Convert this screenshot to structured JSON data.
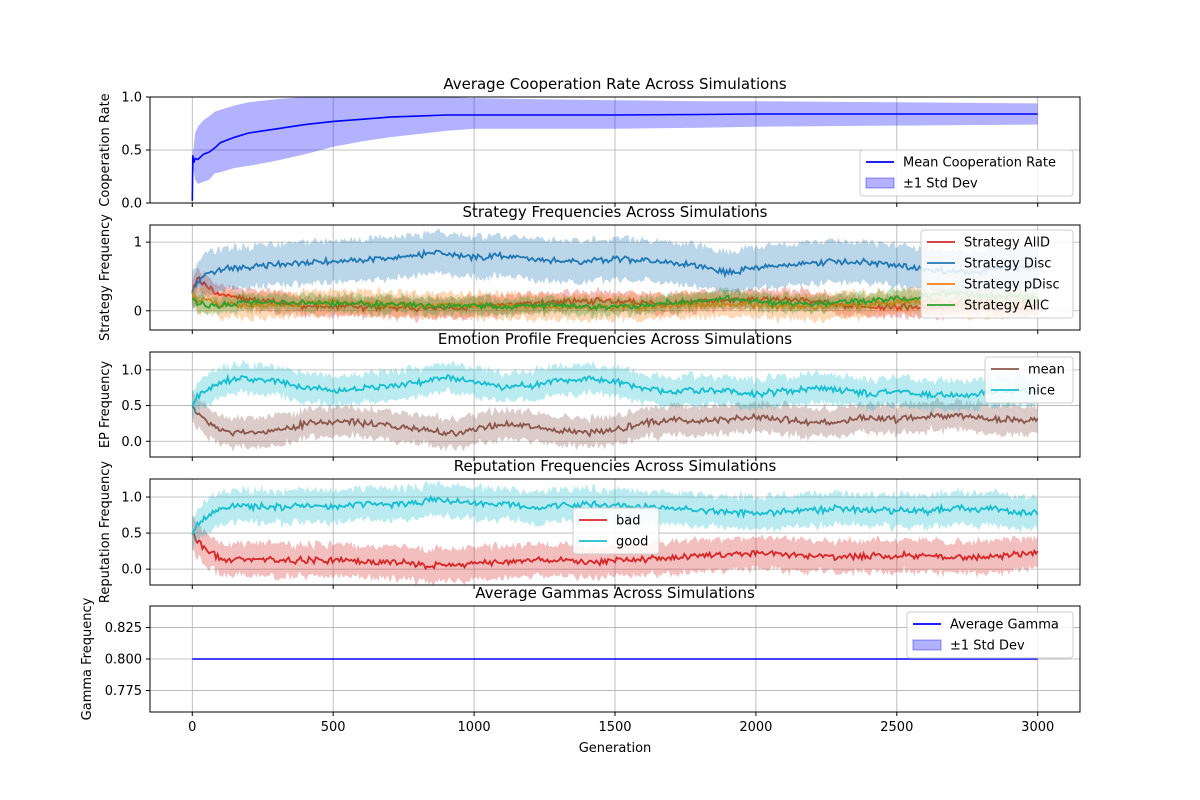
{
  "figure": {
    "xlabel": "Generation",
    "xticks": [
      0,
      500,
      1000,
      1500,
      2000,
      2500,
      3000
    ],
    "xlim": [
      -150,
      3150
    ]
  },
  "chart_data": [
    {
      "type": "line",
      "title": "Average Cooperation Rate Across Simulations",
      "ylabel": "Cooperation Rate",
      "ylim": [
        0,
        1
      ],
      "yticks": [
        "0.0",
        "0.5",
        "1.0"
      ],
      "legend_position": "lower-right",
      "series": [
        {
          "name": "Mean Cooperation Rate",
          "color": "#0000ff",
          "x": [
            0,
            2,
            5,
            10,
            20,
            40,
            60,
            80,
            100,
            150,
            200,
            300,
            400,
            500,
            600,
            700,
            800,
            900,
            1000,
            1200,
            1500,
            1800,
            2000,
            2500,
            3000
          ],
          "mean": [
            0.02,
            0.45,
            0.38,
            0.42,
            0.41,
            0.46,
            0.48,
            0.52,
            0.57,
            0.62,
            0.66,
            0.7,
            0.74,
            0.77,
            0.79,
            0.81,
            0.82,
            0.83,
            0.83,
            0.83,
            0.83,
            0.835,
            0.84,
            0.84,
            0.84
          ],
          "std_label": "±1 Std Dev",
          "std_color": "#0000ff",
          "lower": [
            0.0,
            0.4,
            0.3,
            0.22,
            0.18,
            0.2,
            0.22,
            0.28,
            0.29,
            0.33,
            0.35,
            0.4,
            0.46,
            0.53,
            0.58,
            0.62,
            0.65,
            0.68,
            0.7,
            0.7,
            0.7,
            0.71,
            0.72,
            0.73,
            0.74
          ],
          "upper": [
            0.0,
            0.5,
            0.52,
            0.66,
            0.72,
            0.78,
            0.82,
            0.86,
            0.88,
            0.92,
            0.95,
            0.98,
            1.0,
            1.0,
            1.0,
            1.0,
            1.0,
            1.0,
            0.99,
            0.98,
            0.97,
            0.96,
            0.96,
            0.95,
            0.94
          ]
        }
      ]
    },
    {
      "type": "line",
      "title": "Strategy Frequencies Across Simulations",
      "ylabel": "Strategy Frequency",
      "ylim": [
        -0.28,
        1.25
      ],
      "yticks": [
        "0",
        "1"
      ],
      "legend_position": "upper-right",
      "x_samples": [
        0,
        20,
        50,
        100,
        150,
        200,
        300,
        400,
        500,
        600,
        700,
        800,
        850,
        900,
        1000,
        1100,
        1200,
        1300,
        1400,
        1500,
        1600,
        1700,
        1800,
        1900,
        2000,
        2100,
        2200,
        2300,
        2400,
        2500,
        2600,
        2700,
        2800,
        2900,
        3000
      ],
      "series": [
        {
          "name": "Strategy AllD",
          "color": "#d62728",
          "std": 0.14,
          "mean": [
            0.3,
            0.48,
            0.35,
            0.22,
            0.2,
            0.16,
            0.12,
            0.07,
            0.05,
            0.05,
            0.05,
            0.04,
            0.03,
            0.04,
            0.06,
            0.08,
            0.1,
            0.13,
            0.15,
            0.14,
            0.12,
            0.1,
            0.13,
            0.16,
            0.17,
            0.16,
            0.14,
            0.08,
            0.06,
            0.05,
            0.05,
            0.08,
            0.12,
            0.07,
            0.05
          ]
        },
        {
          "name": "Strategy Disc",
          "color": "#1f77b4",
          "std": 0.3,
          "mean": [
            0.3,
            0.4,
            0.55,
            0.6,
            0.62,
            0.64,
            0.68,
            0.7,
            0.72,
            0.74,
            0.78,
            0.8,
            0.85,
            0.82,
            0.78,
            0.8,
            0.76,
            0.74,
            0.72,
            0.76,
            0.74,
            0.7,
            0.66,
            0.56,
            0.62,
            0.66,
            0.7,
            0.72,
            0.7,
            0.66,
            0.6,
            0.56,
            0.58,
            0.62,
            0.64
          ]
        },
        {
          "name": "Strategy pDisc",
          "color": "#ff7f0e",
          "std": 0.18,
          "mean": [
            0.25,
            0.12,
            0.18,
            0.1,
            0.08,
            0.07,
            0.08,
            0.1,
            0.12,
            0.11,
            0.09,
            0.08,
            0.06,
            0.07,
            0.08,
            0.07,
            0.06,
            0.05,
            0.06,
            0.05,
            0.06,
            0.08,
            0.09,
            0.1,
            0.08,
            0.07,
            0.06,
            0.07,
            0.09,
            0.12,
            0.14,
            0.1,
            0.08,
            0.1,
            0.12
          ]
        },
        {
          "name": "Strategy AllC",
          "color": "#2ca02c",
          "std": 0.12,
          "mean": [
            0.15,
            0.1,
            0.08,
            0.08,
            0.1,
            0.12,
            0.12,
            0.13,
            0.11,
            0.1,
            0.08,
            0.08,
            0.06,
            0.07,
            0.08,
            0.05,
            0.08,
            0.08,
            0.07,
            0.05,
            0.08,
            0.12,
            0.12,
            0.18,
            0.13,
            0.11,
            0.1,
            0.13,
            0.15,
            0.17,
            0.21,
            0.26,
            0.22,
            0.21,
            0.19
          ]
        }
      ]
    },
    {
      "type": "line",
      "title": "Emotion Profile Frequencies Across Simulations",
      "ylabel": "EP Frequency",
      "ylim": [
        -0.22,
        1.25
      ],
      "yticks": [
        "0.0",
        "0.5",
        "1.0"
      ],
      "legend_position": "upper-right",
      "x_samples": [
        0,
        20,
        50,
        100,
        150,
        200,
        300,
        400,
        500,
        600,
        700,
        800,
        850,
        900,
        1000,
        1100,
        1200,
        1300,
        1400,
        1500,
        1600,
        1700,
        1800,
        1900,
        2000,
        2100,
        2200,
        2300,
        2400,
        2500,
        2600,
        2700,
        2800,
        2900,
        3000
      ],
      "series": [
        {
          "name": "mean",
          "color": "#8c564b",
          "std": 0.2,
          "mean": [
            0.5,
            0.38,
            0.28,
            0.18,
            0.12,
            0.12,
            0.16,
            0.24,
            0.28,
            0.26,
            0.22,
            0.18,
            0.14,
            0.1,
            0.16,
            0.24,
            0.22,
            0.14,
            0.12,
            0.16,
            0.26,
            0.3,
            0.28,
            0.3,
            0.34,
            0.3,
            0.26,
            0.28,
            0.34,
            0.3,
            0.34,
            0.36,
            0.32,
            0.3,
            0.28
          ]
        },
        {
          "name": "nice",
          "color": "#17becf",
          "std": 0.2,
          "mean": [
            0.5,
            0.62,
            0.72,
            0.82,
            0.88,
            0.88,
            0.84,
            0.76,
            0.72,
            0.74,
            0.78,
            0.82,
            0.86,
            0.9,
            0.84,
            0.76,
            0.78,
            0.86,
            0.88,
            0.84,
            0.74,
            0.7,
            0.72,
            0.7,
            0.66,
            0.7,
            0.74,
            0.72,
            0.66,
            0.7,
            0.66,
            0.64,
            0.68,
            0.7,
            0.72
          ]
        }
      ]
    },
    {
      "type": "line",
      "title": "Reputation Frequencies Across Simulations",
      "ylabel": "Reputation Frequency",
      "ylim": [
        -0.22,
        1.25
      ],
      "yticks": [
        "0.0",
        "0.5",
        "1.0"
      ],
      "legend_position": "center",
      "x_samples": [
        0,
        20,
        50,
        100,
        150,
        200,
        300,
        400,
        500,
        600,
        700,
        800,
        850,
        900,
        1000,
        1100,
        1200,
        1300,
        1400,
        1500,
        1600,
        1700,
        1800,
        1900,
        2000,
        2100,
        2200,
        2300,
        2400,
        2500,
        2600,
        2700,
        2800,
        2900,
        3000
      ],
      "series": [
        {
          "name": "bad",
          "color": "#d62728",
          "std": 0.22,
          "mean": [
            0.5,
            0.38,
            0.28,
            0.16,
            0.12,
            0.12,
            0.14,
            0.12,
            0.12,
            0.1,
            0.1,
            0.08,
            0.04,
            0.06,
            0.08,
            0.1,
            0.14,
            0.12,
            0.1,
            0.12,
            0.14,
            0.16,
            0.18,
            0.2,
            0.22,
            0.2,
            0.18,
            0.16,
            0.18,
            0.18,
            0.2,
            0.16,
            0.16,
            0.2,
            0.22
          ]
        },
        {
          "name": "good",
          "color": "#17becf",
          "std": 0.22,
          "mean": [
            0.5,
            0.62,
            0.72,
            0.84,
            0.88,
            0.88,
            0.86,
            0.88,
            0.88,
            0.9,
            0.9,
            0.92,
            0.96,
            0.94,
            0.92,
            0.9,
            0.86,
            0.88,
            0.9,
            0.88,
            0.86,
            0.84,
            0.82,
            0.8,
            0.78,
            0.8,
            0.82,
            0.84,
            0.82,
            0.82,
            0.8,
            0.84,
            0.84,
            0.8,
            0.78
          ]
        }
      ]
    },
    {
      "type": "line",
      "title": "Average Gammas Across Simulations",
      "ylabel": "Gamma Frequency",
      "ylim": [
        0.758,
        0.842
      ],
      "yticks": [
        "0.775",
        "0.800",
        "0.825"
      ],
      "legend_position": "upper-right",
      "series": [
        {
          "name": "Average Gamma",
          "color": "#0000ff",
          "x": [
            0,
            3000
          ],
          "mean": [
            0.8,
            0.8
          ],
          "std_label": "±1 Std Dev",
          "std_color": "#0000ff"
        }
      ]
    }
  ]
}
